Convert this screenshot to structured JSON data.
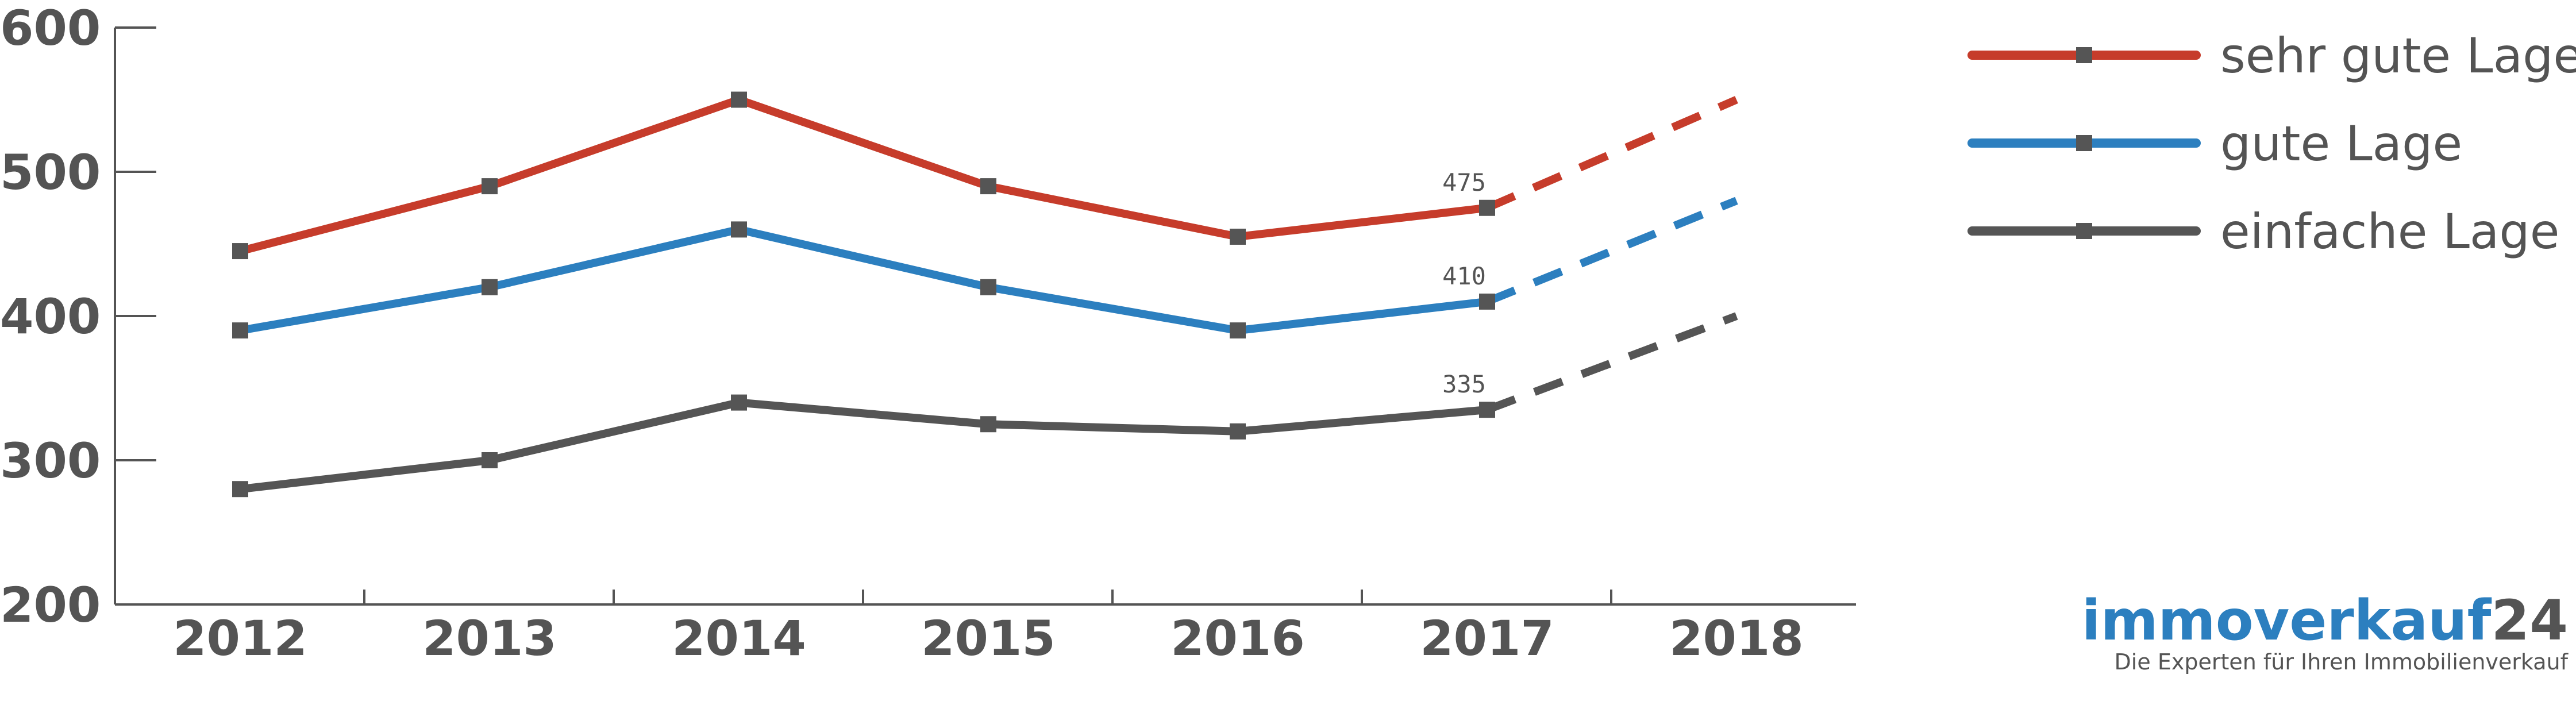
{
  "chart_data": {
    "type": "line",
    "title": "",
    "xlabel": "",
    "ylabel": "",
    "categories": [
      "2012",
      "2013",
      "2014",
      "2015",
      "2016",
      "2017",
      "2018"
    ],
    "y_ticks": [
      "600",
      "500",
      "400",
      "300",
      "200"
    ],
    "ylim": [
      200,
      600
    ],
    "grid": false,
    "legend_position": "top-right",
    "solid_through": "2017",
    "dashed_projection": [
      "2017",
      "2018"
    ],
    "series": [
      {
        "name": "sehr gute Lage",
        "color": "#c63c2b",
        "values": [
          445,
          490,
          550,
          490,
          455,
          475,
          550
        ],
        "label_2017": "475"
      },
      {
        "name": "gute Lage",
        "color": "#2c7fbf",
        "values": [
          390,
          420,
          460,
          420,
          390,
          410,
          480
        ],
        "label_2017": "410"
      },
      {
        "name": "einfache Lage",
        "color": "#555555",
        "values": [
          280,
          300,
          340,
          325,
          320,
          335,
          400
        ],
        "label_2017": "335"
      }
    ]
  },
  "logo": {
    "part1": "immoverkauf",
    "part2": "24",
    "tagline": "Die Experten für Ihren Immobilienverkauf",
    "color_part1": "#2c7fbf",
    "color_part2": "#545454"
  }
}
